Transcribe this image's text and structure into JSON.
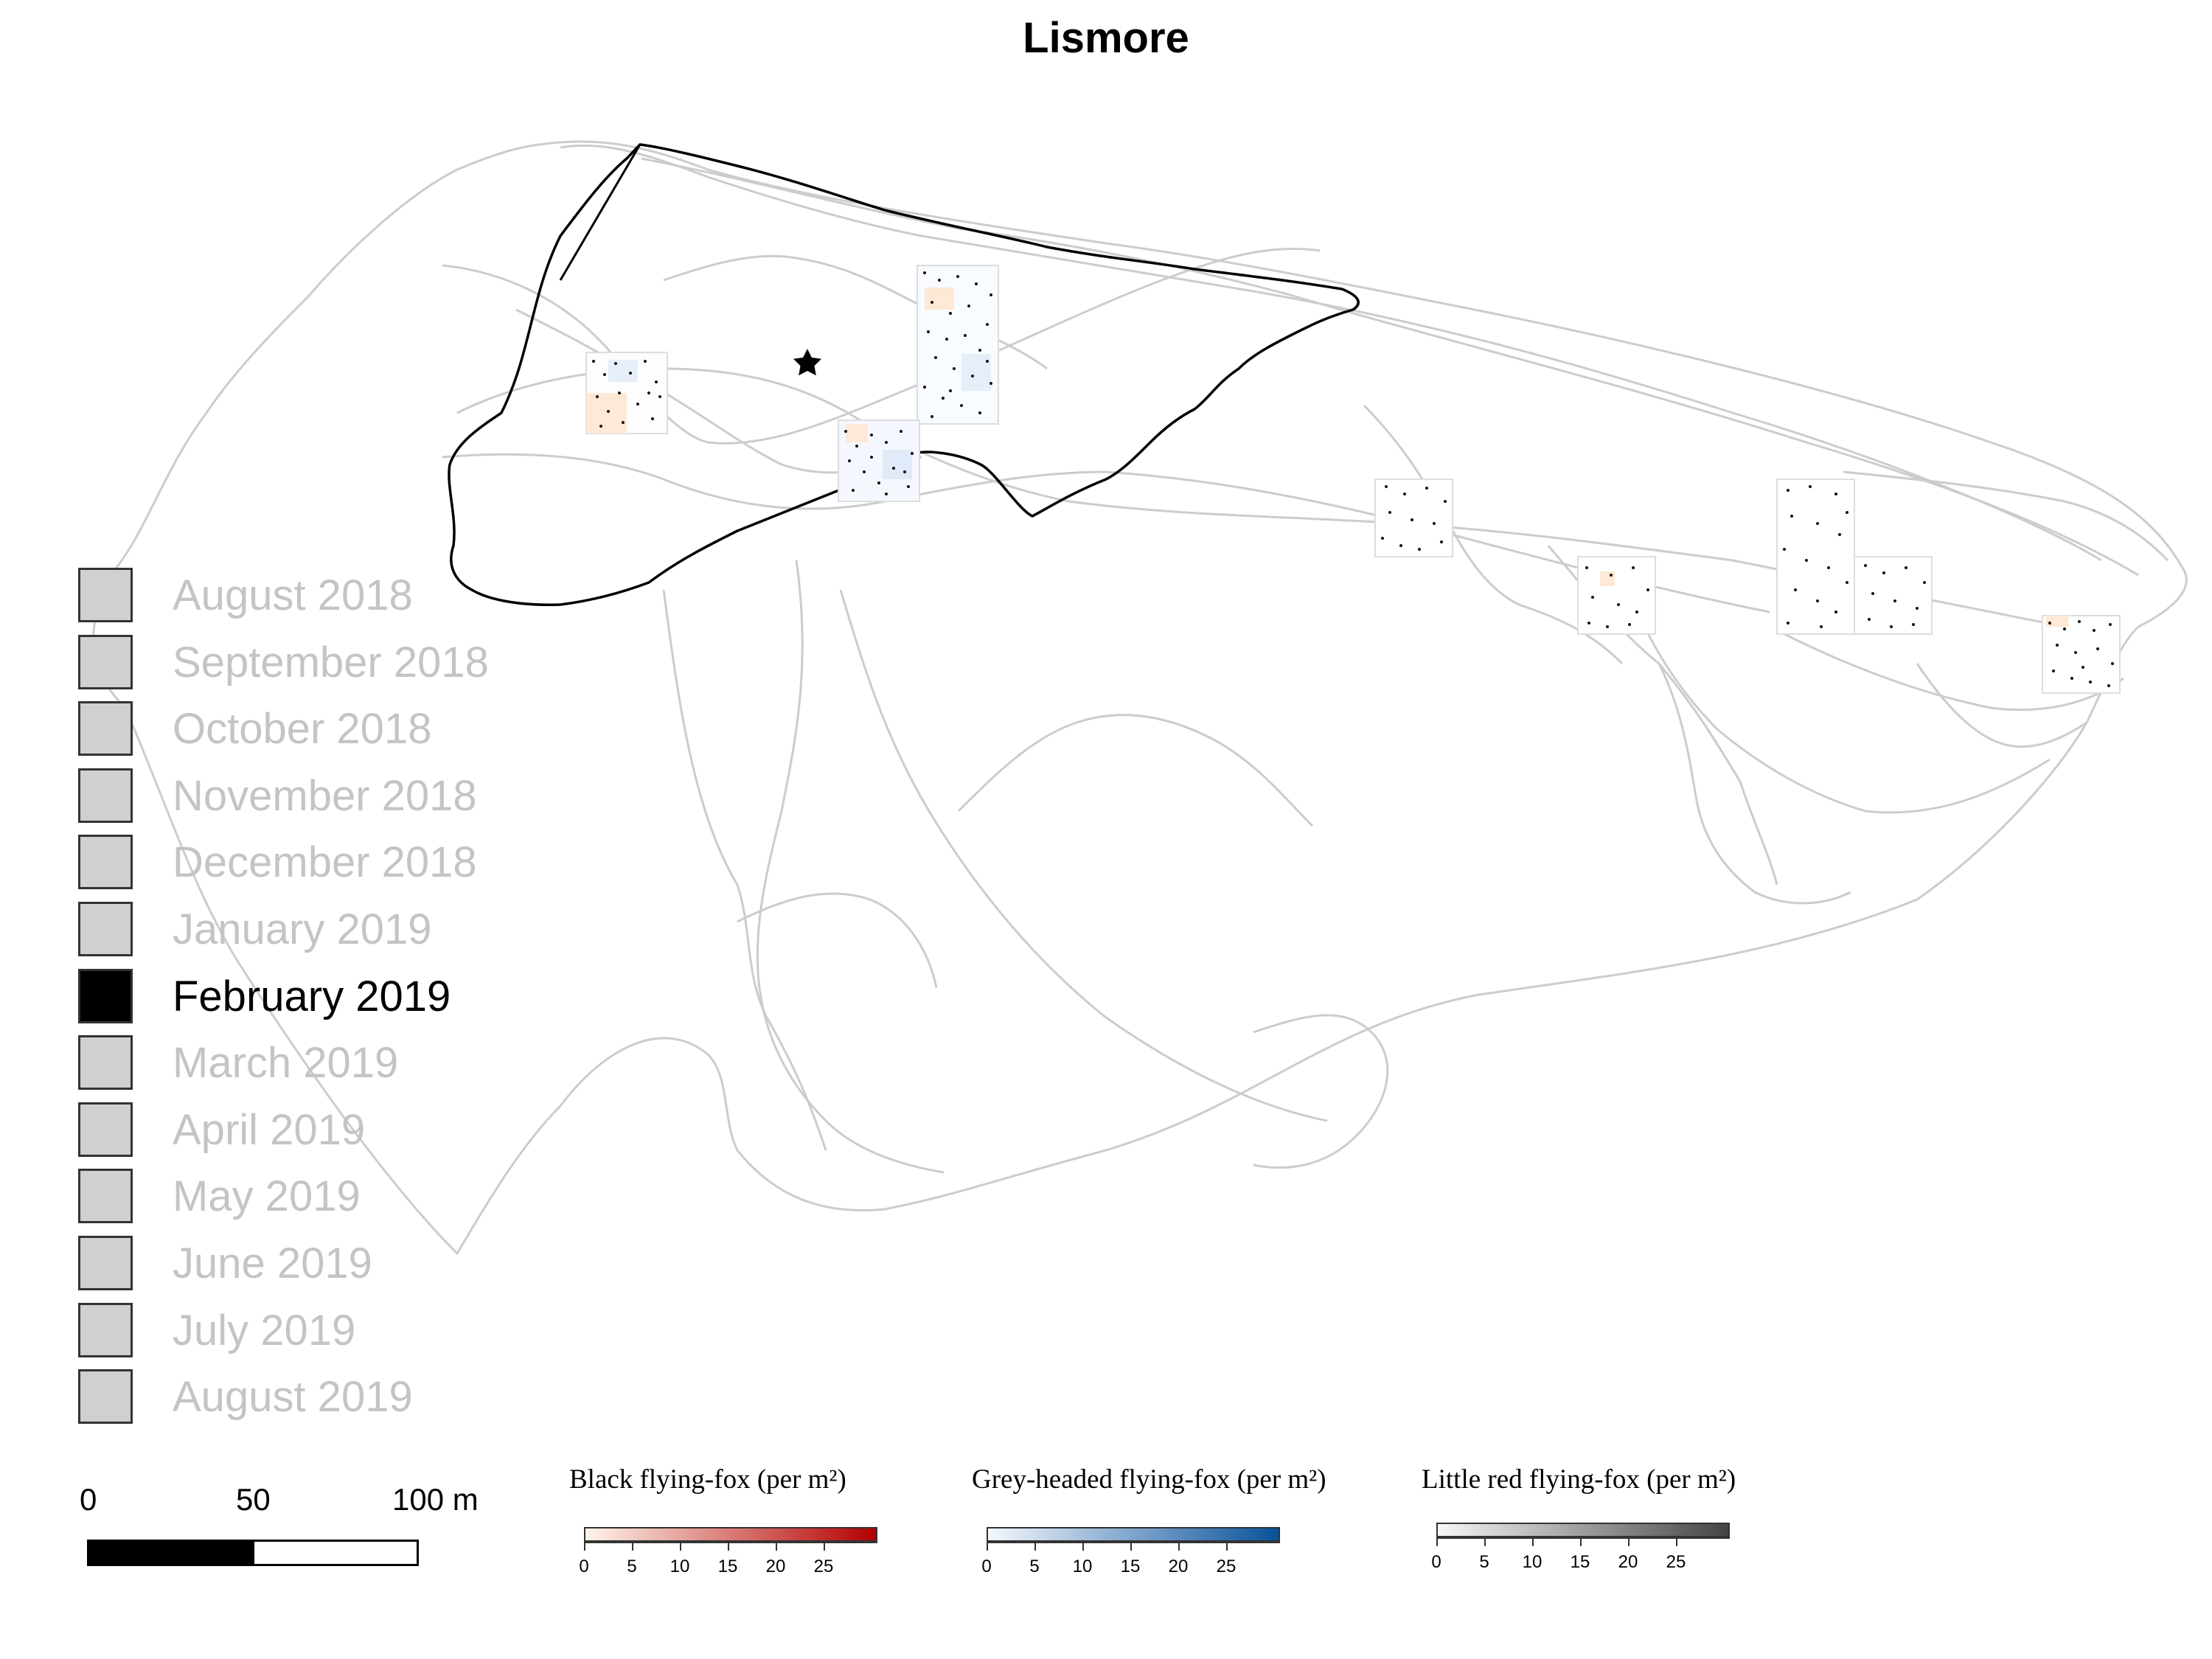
{
  "title": "Lismore",
  "months": [
    {
      "label": "August 2018",
      "active": false
    },
    {
      "label": "September 2018",
      "active": false
    },
    {
      "label": "October 2018",
      "active": false
    },
    {
      "label": "November 2018",
      "active": false
    },
    {
      "label": "December 2018",
      "active": false
    },
    {
      "label": "January 2019",
      "active": false
    },
    {
      "label": "February 2019",
      "active": true
    },
    {
      "label": "March 2019",
      "active": false
    },
    {
      "label": "April 2019",
      "active": false
    },
    {
      "label": "May 2019",
      "active": false
    },
    {
      "label": "June 2019",
      "active": false
    },
    {
      "label": "July 2019",
      "active": false
    },
    {
      "label": "August 2019",
      "active": false
    }
  ],
  "scalebar": {
    "label_0": "0",
    "label_50": "50",
    "label_100": "100 m"
  },
  "colorbars": [
    {
      "title": "Black flying-fox (per m²)",
      "start_color": "#fff5eb",
      "end_color": "#b30000",
      "ticks": [
        "0",
        "5",
        "10",
        "15",
        "20",
        "25"
      ]
    },
    {
      "title": "Grey-headed flying-fox (per m²)",
      "start_color": "#f4f8fd",
      "end_color": "#08519c",
      "ticks": [
        "0",
        "5",
        "10",
        "15",
        "20",
        "25"
      ]
    },
    {
      "title": "Little red flying-fox (per m²)",
      "start_color": "#f7f7f7",
      "end_color": "#444444",
      "ticks": [
        "0",
        "5",
        "10",
        "15",
        "20",
        "25"
      ]
    }
  ],
  "colors": {
    "track": "#cccccc",
    "boundary": "#000000",
    "month_inactive": "#d0d0d0",
    "month_active": "#000000"
  },
  "icons": {
    "roost_marker": "star-icon"
  }
}
